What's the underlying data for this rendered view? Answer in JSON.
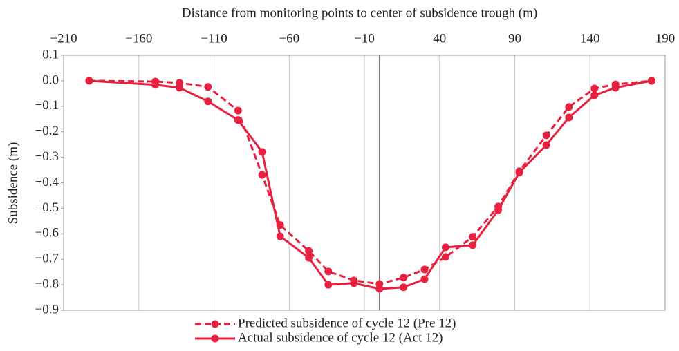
{
  "chart_data": {
    "type": "line",
    "xlabel": "Distance from monitoring points to center of subsidence trough (m)",
    "ylabel": "Subsidence (m)",
    "x": [
      -193,
      -149,
      -133,
      -114,
      -94,
      -78,
      -66,
      -47,
      -34,
      -17,
      0,
      16,
      30,
      44,
      62,
      79,
      93,
      111,
      126,
      143,
      157,
      181
    ],
    "series": [
      {
        "name": "Predicted subsidence of cycle 12 (Pre 12)",
        "color": "#e8203f",
        "dash": true,
        "values": [
          0,
          -0.003,
          -0.008,
          -0.024,
          -0.117,
          -0.369,
          -0.566,
          -0.667,
          -0.748,
          -0.783,
          -0.797,
          -0.772,
          -0.74,
          -0.691,
          -0.612,
          -0.493,
          -0.355,
          -0.214,
          -0.103,
          -0.03,
          -0.014,
          0
        ]
      },
      {
        "name": "Actual subsidence of cycle 12 (Act 12)",
        "color": "#e8203f",
        "dash": false,
        "values": [
          0,
          -0.016,
          -0.027,
          -0.081,
          -0.154,
          -0.279,
          -0.61,
          -0.694,
          -0.8,
          -0.794,
          -0.816,
          -0.81,
          -0.778,
          -0.653,
          -0.645,
          -0.507,
          -0.36,
          -0.252,
          -0.144,
          -0.057,
          -0.027,
          0
        ]
      }
    ],
    "xlim": [
      -210,
      190
    ],
    "xticks": [
      {
        "value": -210,
        "label": "−210"
      },
      {
        "value": -160,
        "label": "−160"
      },
      {
        "value": -110,
        "label": "−110"
      },
      {
        "value": -60,
        "label": "−60"
      },
      {
        "value": -10,
        "label": "−10"
      },
      40,
      90,
      140,
      190
    ],
    "ylim": [
      -0.9,
      0.1
    ],
    "yticks": [
      {
        "value": 0.1,
        "label": "0.1"
      },
      {
        "value": 0,
        "label": "0.0"
      },
      {
        "value": -0.1,
        "label": "−0.1"
      },
      {
        "value": -0.2,
        "label": "−0.2"
      },
      {
        "value": -0.3,
        "label": "−0.3"
      },
      {
        "value": -0.4,
        "label": "−0.4"
      },
      {
        "value": -0.5,
        "label": "−0.5"
      },
      {
        "value": -0.6,
        "label": "−0.6"
      },
      {
        "value": -0.7,
        "label": "−0.7"
      },
      {
        "value": -0.8,
        "label": "−0.8"
      },
      {
        "value": -0.9,
        "label": "−0.9"
      }
    ],
    "grid": true,
    "legend": "bottom"
  }
}
